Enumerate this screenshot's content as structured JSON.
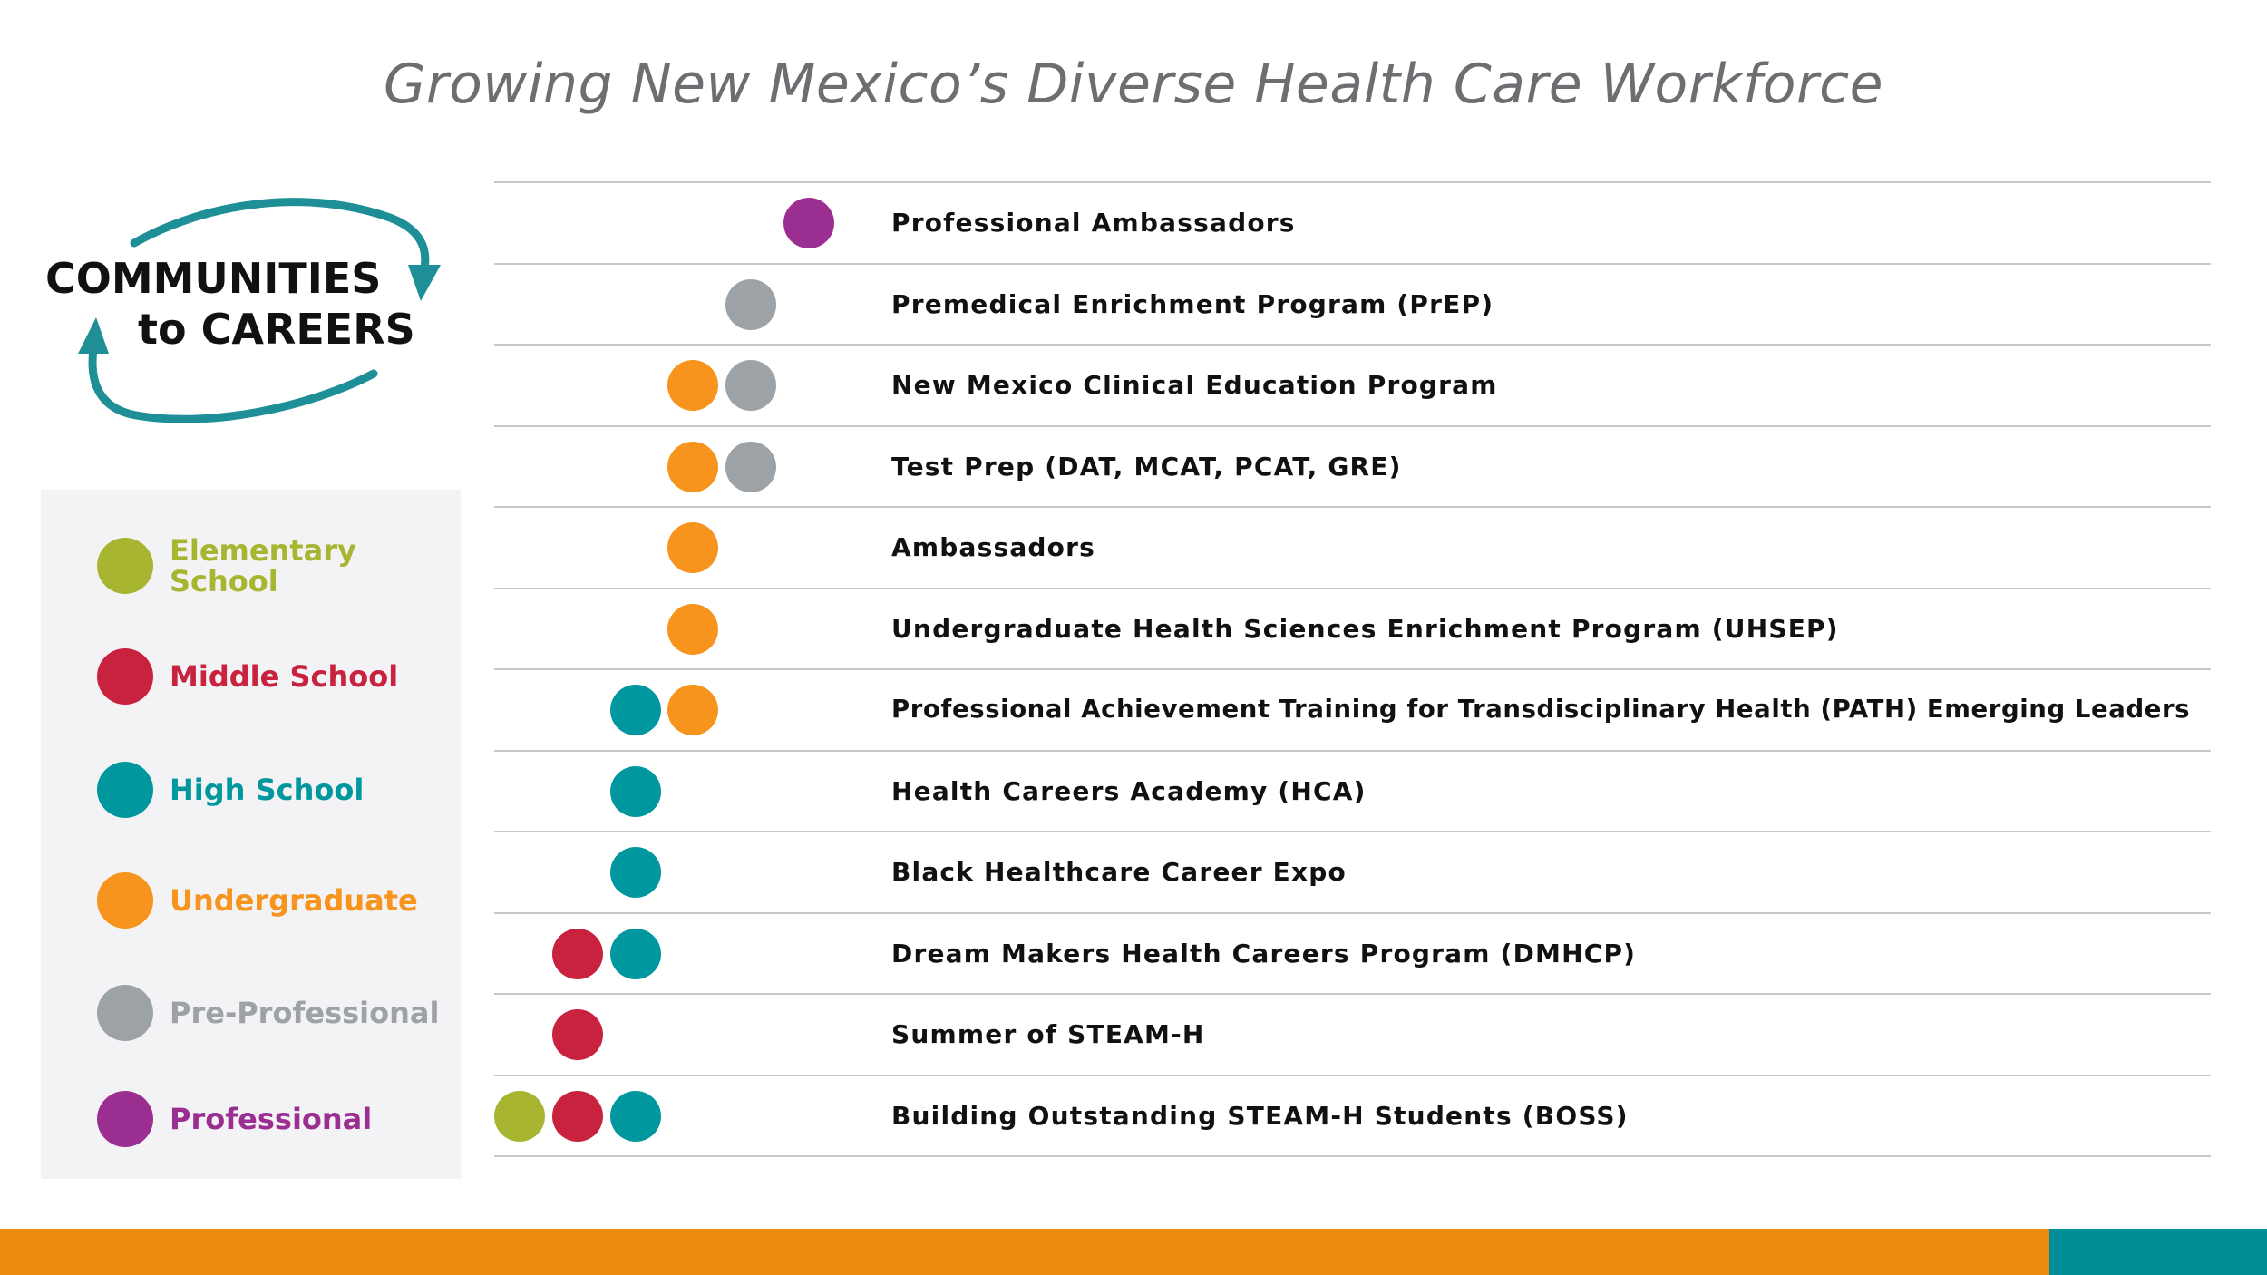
{
  "title": "Growing New Mexico’s Diverse Health Care Workforce",
  "logo": {
    "line1": "COMMUNITIES",
    "line2": "to CAREERS",
    "arrow_color": "#1e8f96"
  },
  "legend": [
    {
      "key": "elementary",
      "label": "Elementary School",
      "color": "#a8b531"
    },
    {
      "key": "middle",
      "label": "Middle School",
      "color": "#c8223f"
    },
    {
      "key": "high",
      "label": "High School",
      "color": "#00989e"
    },
    {
      "key": "undergraduate",
      "label": "Undergraduate",
      "color": "#f7941d"
    },
    {
      "key": "preprofessional",
      "label": "Pre-Professional",
      "color": "#9da2a6"
    },
    {
      "key": "professional",
      "label": "Professional",
      "color": "#9b2f91"
    }
  ],
  "programs": [
    {
      "name": "Professional Ambassadors",
      "levels": [
        "professional"
      ]
    },
    {
      "name": "Premedical Enrichment Program (PrEP)",
      "levels": [
        "preprofessional"
      ]
    },
    {
      "name": "New Mexico Clinical Education Program",
      "levels": [
        "undergraduate",
        "preprofessional"
      ]
    },
    {
      "name": "Test Prep (DAT, MCAT, PCAT, GRE)",
      "levels": [
        "undergraduate",
        "preprofessional"
      ]
    },
    {
      "name": "Ambassadors",
      "levels": [
        "undergraduate"
      ]
    },
    {
      "name": "Undergraduate Health Sciences Enrichment Program (UHSEP)",
      "levels": [
        "undergraduate"
      ]
    },
    {
      "name": "Professional Achievement Training for Transdisciplinary Health (PATH) Emerging Leaders",
      "levels": [
        "high",
        "undergraduate"
      ]
    },
    {
      "name": "Health Careers Academy (HCA)",
      "levels": [
        "high"
      ]
    },
    {
      "name": "Black Healthcare Career Expo",
      "levels": [
        "high"
      ]
    },
    {
      "name": "Dream Makers Health Careers Program (DMHCP)",
      "levels": [
        "middle",
        "high"
      ]
    },
    {
      "name": "Summer of STEAM-H",
      "levels": [
        "middle"
      ]
    },
    {
      "name": "Building Outstanding STEAM-H Students (BOSS)",
      "levels": [
        "elementary",
        "middle",
        "high"
      ]
    }
  ],
  "footer": {
    "orange": "#ec8a0f",
    "teal": "#008f96"
  }
}
